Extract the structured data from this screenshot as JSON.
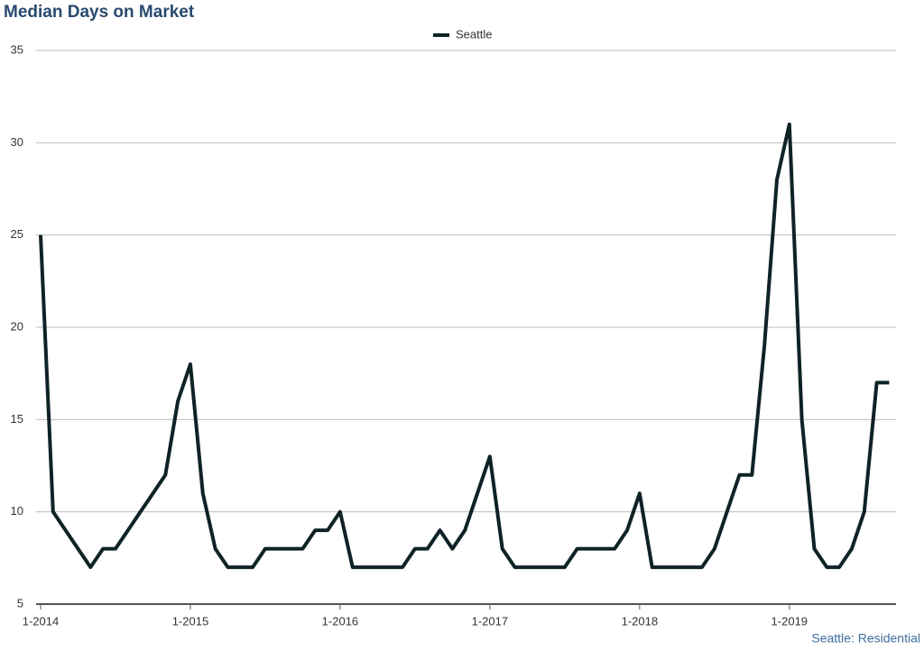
{
  "chart_data": {
    "type": "line",
    "title": "Median Days on Market",
    "footer": "Seattle: Residential",
    "categories": [
      "1-2014",
      null,
      null,
      null,
      null,
      null,
      null,
      null,
      null,
      null,
      null,
      null,
      "1-2015",
      null,
      null,
      null,
      null,
      null,
      null,
      null,
      null,
      null,
      null,
      null,
      "1-2016",
      null,
      null,
      null,
      null,
      null,
      null,
      null,
      null,
      null,
      null,
      null,
      "1-2017",
      null,
      null,
      null,
      null,
      null,
      null,
      null,
      null,
      null,
      null,
      null,
      "1-2018",
      null,
      null,
      null,
      null,
      null,
      null,
      null,
      null,
      null,
      null,
      null,
      "1-2019",
      null,
      null,
      null,
      null,
      null,
      null,
      null,
      null
    ],
    "series": [
      {
        "name": "Seattle",
        "color": "#0f2326",
        "values": [
          25,
          10,
          9,
          8,
          7,
          8,
          8,
          9,
          10,
          11,
          12,
          16,
          18,
          11,
          8,
          7,
          7,
          7,
          8,
          8,
          8,
          8,
          9,
          9,
          10,
          7,
          7,
          7,
          7,
          7,
          8,
          8,
          9,
          8,
          9,
          11,
          13,
          8,
          7,
          7,
          7,
          7,
          7,
          8,
          8,
          8,
          8,
          9,
          11,
          7,
          7,
          7,
          7,
          7,
          8,
          10,
          12,
          12,
          19,
          28,
          31,
          15,
          8,
          7,
          7,
          8,
          10,
          17,
          17
        ]
      }
    ],
    "ylim": [
      5,
      35
    ],
    "yticks": [
      5,
      10,
      15,
      20,
      25,
      30,
      35
    ],
    "grid": true,
    "legend": "top"
  }
}
